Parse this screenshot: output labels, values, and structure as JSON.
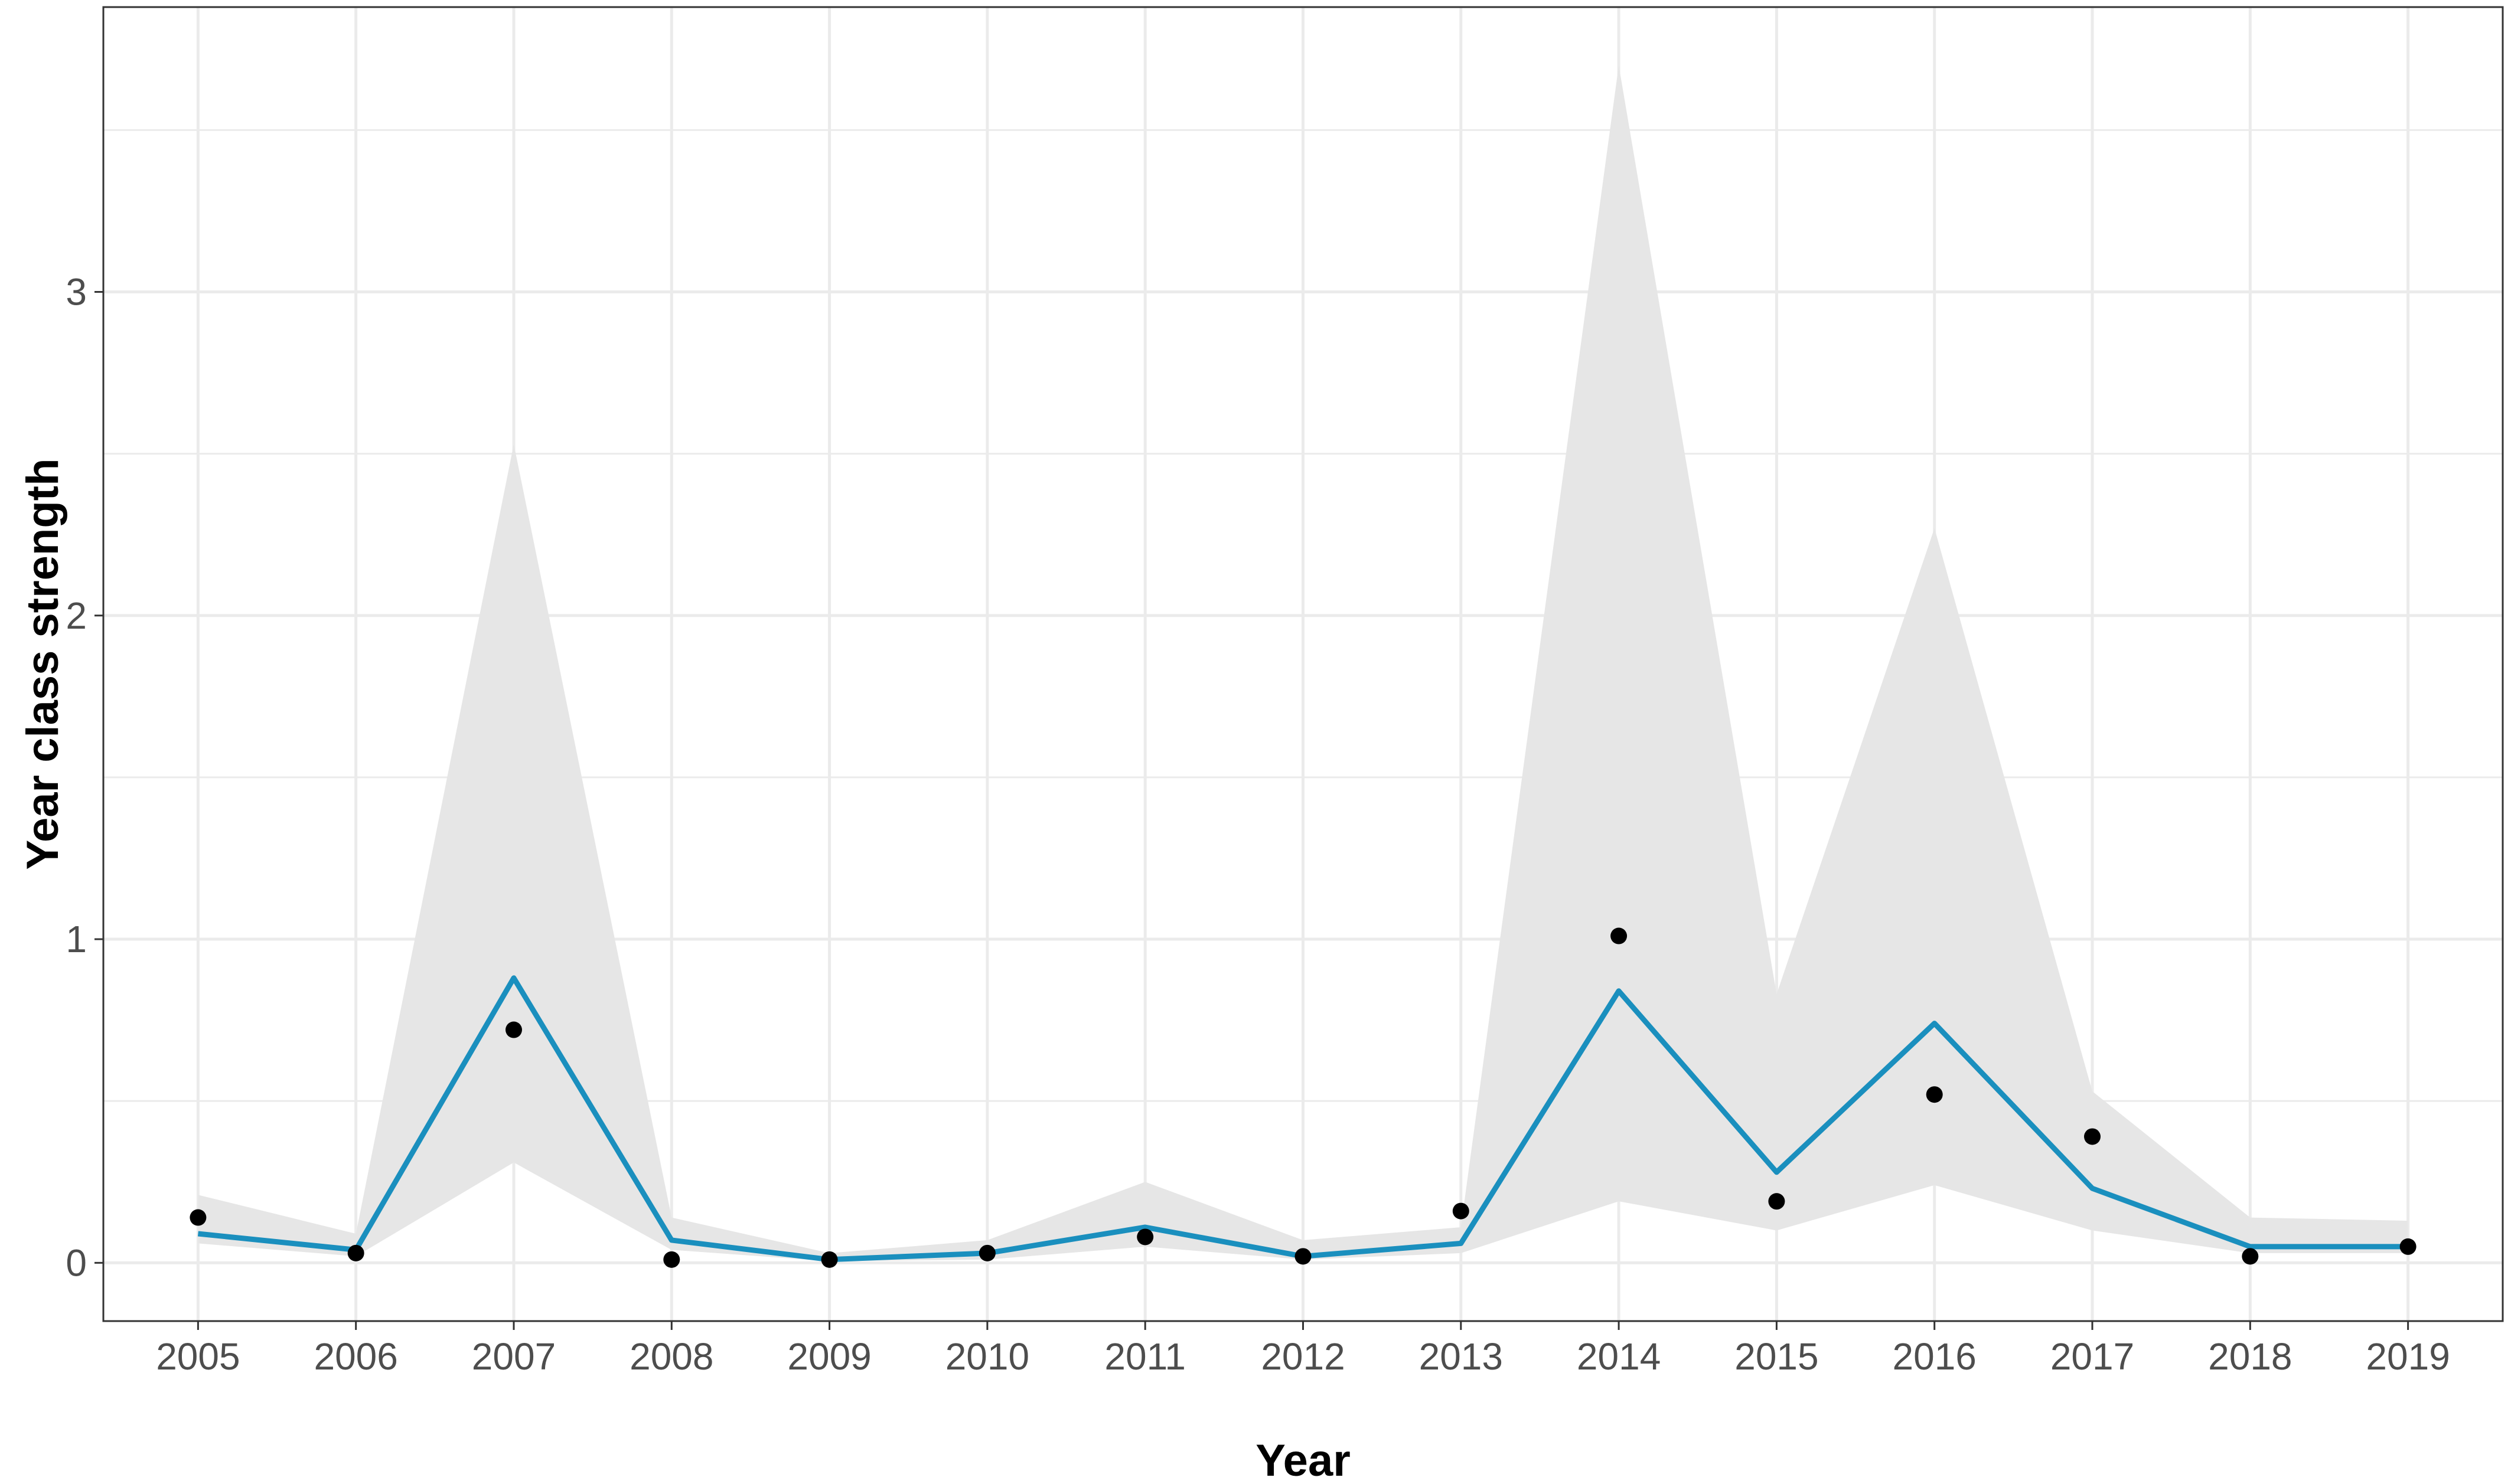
{
  "colors": {
    "line": "#1a8fbe",
    "ribbon": "#e6e6e6",
    "points": "#000000",
    "grid": "#ebebeb",
    "panel_border": "#333333"
  },
  "chart_data": {
    "type": "line",
    "title": "",
    "xlabel": "Year",
    "ylabel": "Year class strength",
    "x": [
      2005,
      2006,
      2007,
      2008,
      2009,
      2010,
      2011,
      2012,
      2013,
      2014,
      2015,
      2016,
      2017,
      2018,
      2019
    ],
    "xlim": [
      2004.4,
      2019.6
    ],
    "ylim": [
      -0.18,
      3.88
    ],
    "y_ticks": [
      0,
      1,
      2,
      3
    ],
    "grid": true,
    "legend": "none",
    "series": [
      {
        "role": "fitted-line",
        "values": [
          0.09,
          0.04,
          0.88,
          0.07,
          0.01,
          0.03,
          0.11,
          0.02,
          0.06,
          0.84,
          0.28,
          0.74,
          0.23,
          0.05,
          0.05
        ]
      },
      {
        "role": "confidence-band",
        "lower": [
          0.06,
          0.02,
          0.31,
          0.04,
          0.005,
          0.01,
          0.05,
          0.01,
          0.03,
          0.19,
          0.1,
          0.24,
          0.1,
          0.03,
          0.03
        ],
        "upper": [
          0.21,
          0.09,
          2.53,
          0.14,
          0.03,
          0.07,
          0.25,
          0.07,
          0.11,
          3.7,
          0.83,
          2.27,
          0.53,
          0.14,
          0.13
        ]
      },
      {
        "role": "observed-points",
        "values": [
          0.14,
          0.03,
          0.72,
          0.01,
          0.01,
          0.03,
          0.08,
          0.02,
          0.16,
          1.01,
          0.19,
          0.52,
          0.39,
          0.02,
          0.05
        ]
      }
    ]
  }
}
